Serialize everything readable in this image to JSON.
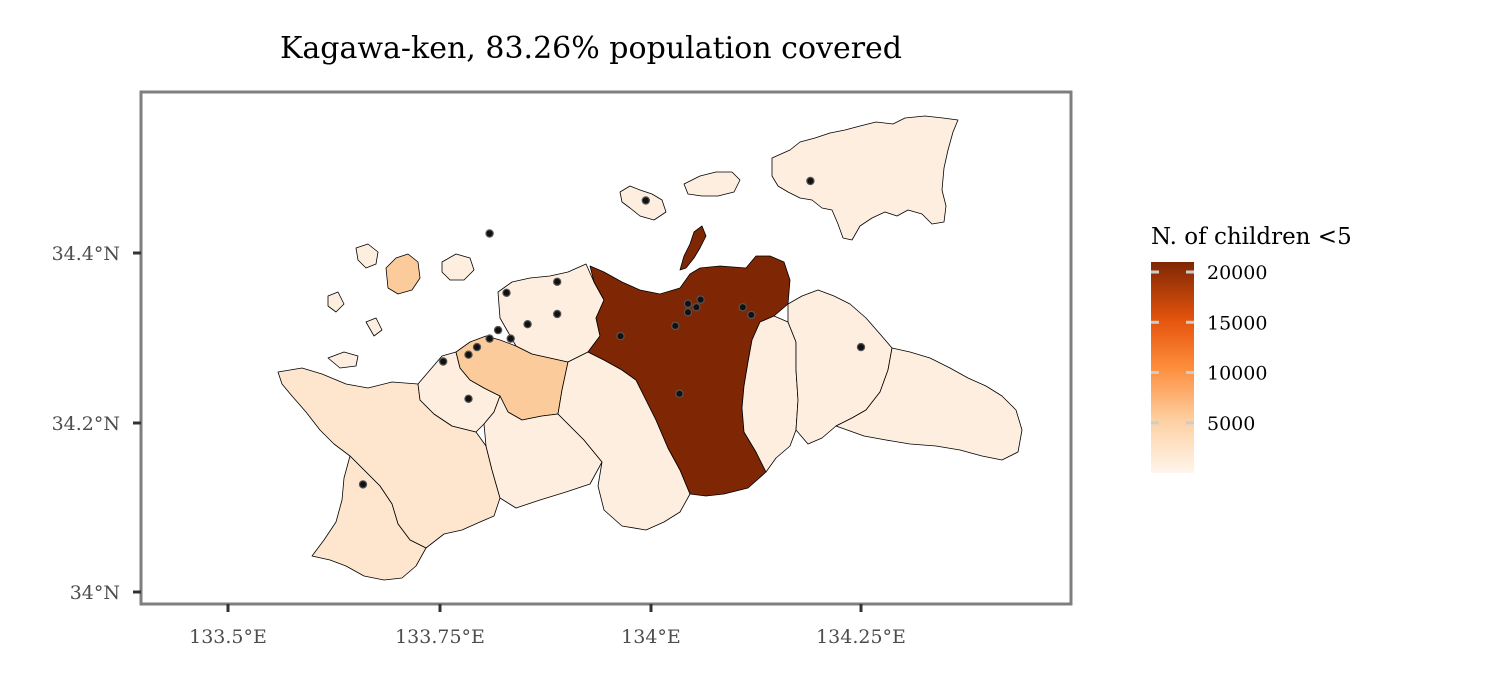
{
  "title": "Kagawa-ken, 83.26% population covered",
  "x_axis": {
    "ticks": [
      "133.5°E",
      "133.75°E",
      "134°E",
      "134.25°E"
    ],
    "tick_values": [
      133.5,
      133.75,
      134.0,
      134.25
    ],
    "range": [
      133.395,
      134.5
    ]
  },
  "y_axis": {
    "ticks": [
      "34°N",
      "34.2°N",
      "34.4°N"
    ],
    "tick_values": [
      34.0,
      34.2,
      34.4
    ],
    "range": [
      33.99,
      34.6
    ]
  },
  "legend": {
    "title": "N. of children <5",
    "labels": [
      "20000",
      "15000",
      "10000",
      "5000"
    ],
    "values": [
      20000,
      15000,
      10000,
      5000
    ],
    "range": [
      0,
      21000
    ],
    "colors": [
      "#fff5eb",
      "#fdd0a2",
      "#fd8d3c",
      "#e6550d",
      "#7f2704"
    ]
  },
  "map_data": {
    "fill_low": "#feeee0",
    "fill_mid": "#fbcb9c",
    "fill_high": "#7f2704",
    "points": [
      {
        "lon": 133.995,
        "lat": 34.462
      },
      {
        "lon": 134.19,
        "lat": 34.485
      },
      {
        "lon": 133.81,
        "lat": 34.423
      },
      {
        "lon": 133.83,
        "lat": 34.353
      },
      {
        "lon": 133.89,
        "lat": 34.366
      },
      {
        "lon": 133.89,
        "lat": 34.328
      },
      {
        "lon": 133.855,
        "lat": 34.316
      },
      {
        "lon": 133.835,
        "lat": 34.299
      },
      {
        "lon": 133.82,
        "lat": 34.309
      },
      {
        "lon": 133.81,
        "lat": 34.299
      },
      {
        "lon": 133.795,
        "lat": 34.289
      },
      {
        "lon": 133.785,
        "lat": 34.28
      },
      {
        "lon": 133.755,
        "lat": 34.272
      },
      {
        "lon": 133.785,
        "lat": 34.228
      },
      {
        "lon": 133.965,
        "lat": 34.302
      },
      {
        "lon": 134.03,
        "lat": 34.314
      },
      {
        "lon": 134.045,
        "lat": 34.33
      },
      {
        "lon": 134.045,
        "lat": 34.34
      },
      {
        "lon": 134.055,
        "lat": 34.336
      },
      {
        "lon": 134.06,
        "lat": 34.345
      },
      {
        "lon": 134.11,
        "lat": 34.336
      },
      {
        "lon": 134.12,
        "lat": 34.327
      },
      {
        "lon": 134.035,
        "lat": 34.234
      },
      {
        "lon": 134.25,
        "lat": 34.289
      },
      {
        "lon": 133.66,
        "lat": 34.127
      }
    ]
  }
}
